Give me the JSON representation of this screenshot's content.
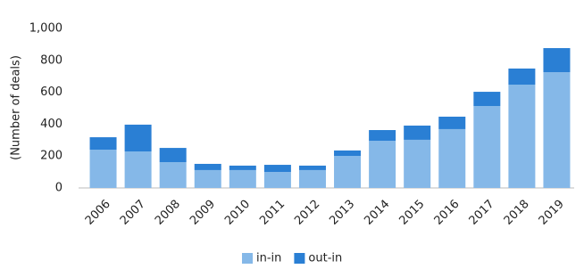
{
  "chart_data": {
    "type": "bar",
    "stacked": true,
    "y_label": "(Number of deals)",
    "categories": [
      "2006",
      "2007",
      "2008",
      "2009",
      "2010",
      "2011",
      "2012",
      "2013",
      "2014",
      "2015",
      "2016",
      "2017",
      "2018",
      "2019"
    ],
    "series": [
      {
        "name": "in-in",
        "color": "#85b8e8",
        "values": [
          240,
          229,
          162,
          112,
          112,
          100,
          112,
          201,
          296,
          302,
          369,
          514,
          648,
          726
        ]
      },
      {
        "name": "out-in",
        "color": "#2a7fd4",
        "values": [
          78,
          168,
          89,
          39,
          28,
          45,
          28,
          34,
          67,
          89,
          78,
          89,
          101,
          151
        ]
      }
    ],
    "ylim": [
      0,
      1000
    ],
    "yticks": [
      0,
      200,
      400,
      600,
      800,
      {
        "value": 1000,
        "label": "1,000"
      }
    ],
    "grid": false,
    "legend": "bottom"
  }
}
